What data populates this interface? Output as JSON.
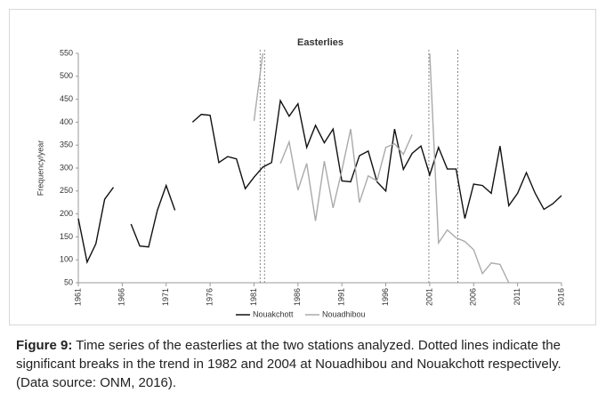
{
  "chart_data": {
    "type": "line",
    "title": "Easterlies",
    "y_label": "Frequency/year",
    "x": [
      1961,
      1962,
      1963,
      1964,
      1965,
      1966,
      1967,
      1968,
      1969,
      1970,
      1971,
      1972,
      1973,
      1974,
      1975,
      1976,
      1977,
      1978,
      1979,
      1980,
      1981,
      1982,
      1983,
      1984,
      1985,
      1986,
      1987,
      1988,
      1989,
      1990,
      1991,
      1992,
      1993,
      1994,
      1995,
      1996,
      1997,
      1998,
      1999,
      2000,
      2001,
      2002,
      2003,
      2004,
      2005,
      2006,
      2007,
      2008,
      2009,
      2010,
      2011,
      2012,
      2013,
      2014,
      2015,
      2016
    ],
    "series": [
      {
        "name": "Nouakchott",
        "color": "#111111",
        "values": [
          190,
          95,
          135,
          232,
          258,
          null,
          178,
          130,
          128,
          208,
          262,
          208,
          null,
          400,
          417,
          415,
          312,
          325,
          320,
          255,
          280,
          302,
          312,
          447,
          413,
          440,
          345,
          393,
          355,
          385,
          272,
          270,
          327,
          337,
          270,
          250,
          385,
          297,
          332,
          348,
          285,
          345,
          298,
          298,
          190,
          265,
          262,
          245,
          348,
          218,
          245,
          290,
          245,
          210,
          222,
          240
        ]
      },
      {
        "name": "Nouadhibou",
        "color": "#aaaaaa",
        "values": [
          null,
          null,
          null,
          null,
          null,
          null,
          null,
          null,
          null,
          null,
          null,
          null,
          null,
          null,
          null,
          null,
          null,
          null,
          null,
          null,
          403,
          550,
          null,
          310,
          357,
          252,
          310,
          185,
          315,
          213,
          295,
          385,
          225,
          283,
          272,
          345,
          353,
          330,
          373,
          null,
          550,
          137,
          165,
          148,
          140,
          122,
          70,
          93,
          90,
          50,
          null,
          null,
          null,
          null,
          null,
          null
        ]
      }
    ],
    "break_lines": [
      1981.7,
      1982.2,
      2000.9,
      2004.2
    ],
    "xlim": [
      1961,
      2016
    ],
    "xticks": [
      1961,
      1966,
      1971,
      1976,
      1981,
      1986,
      1991,
      1996,
      2001,
      2006,
      2011,
      2016
    ],
    "ylim": [
      50,
      550
    ],
    "yticks": [
      50,
      100,
      150,
      200,
      250,
      300,
      350,
      400,
      450,
      500,
      550
    ]
  },
  "caption": {
    "label": "Figure 9:",
    "text": " Time series of the easterlies at the two stations analyzed. Dotted lines indicate the significant breaks in the trend in 1982 and 2004 at Nouadhibou and Nouakchott respectively. (Data source: ONM, 2016)."
  }
}
